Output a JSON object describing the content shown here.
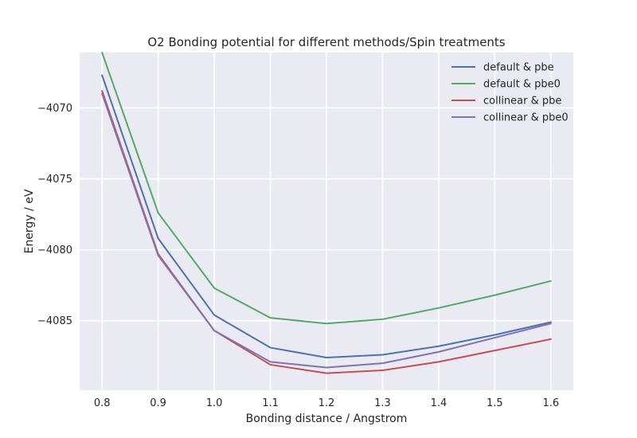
{
  "chart_data": {
    "type": "line",
    "title": "O2 Bonding potential for different methods/Spin treatments",
    "xlabel": "Bonding distance / Angstrom",
    "ylabel": "Energy / eV",
    "x": [
      0.8,
      0.9,
      1.0,
      1.1,
      1.2,
      1.3,
      1.4,
      1.5,
      1.6
    ],
    "xlim": [
      0.76,
      1.64
    ],
    "ylim": [
      -4089.9,
      -4066.1
    ],
    "xticks": [
      "0.8",
      "0.9",
      "1.0",
      "1.1",
      "1.2",
      "1.3",
      "1.4",
      "1.5",
      "1.6"
    ],
    "yticks": [
      "−4070",
      "−4075",
      "−4080",
      "−4085"
    ],
    "ytick_values": [
      -4070,
      -4075,
      -4080,
      -4085
    ],
    "grid": true,
    "legend_position": "top-right",
    "series": [
      {
        "name": "default & pbe",
        "color": "#4c72b0",
        "values": [
          -4067.7,
          -4079.2,
          -4084.6,
          -4086.9,
          -4087.6,
          -4087.4,
          -4086.8,
          -4086.0,
          -4085.1
        ]
      },
      {
        "name": "default & pbe0",
        "color": "#55a868",
        "values": [
          -4066.1,
          -4077.4,
          -4082.7,
          -4084.8,
          -4085.2,
          -4084.9,
          -4084.1,
          -4083.2,
          -4082.2
        ]
      },
      {
        "name": "collinear & pbe",
        "color": "#c44e52",
        "values": [
          -4068.8,
          -4080.3,
          -4085.7,
          -4088.1,
          -4088.7,
          -4088.5,
          -4087.9,
          -4087.1,
          -4086.3
        ]
      },
      {
        "name": "collinear & pbe0",
        "color": "#8172b2",
        "values": [
          -4069.0,
          -4080.4,
          -4085.7,
          -4087.9,
          -4088.3,
          -4088.0,
          -4087.2,
          -4086.2,
          -4085.2
        ]
      }
    ]
  }
}
